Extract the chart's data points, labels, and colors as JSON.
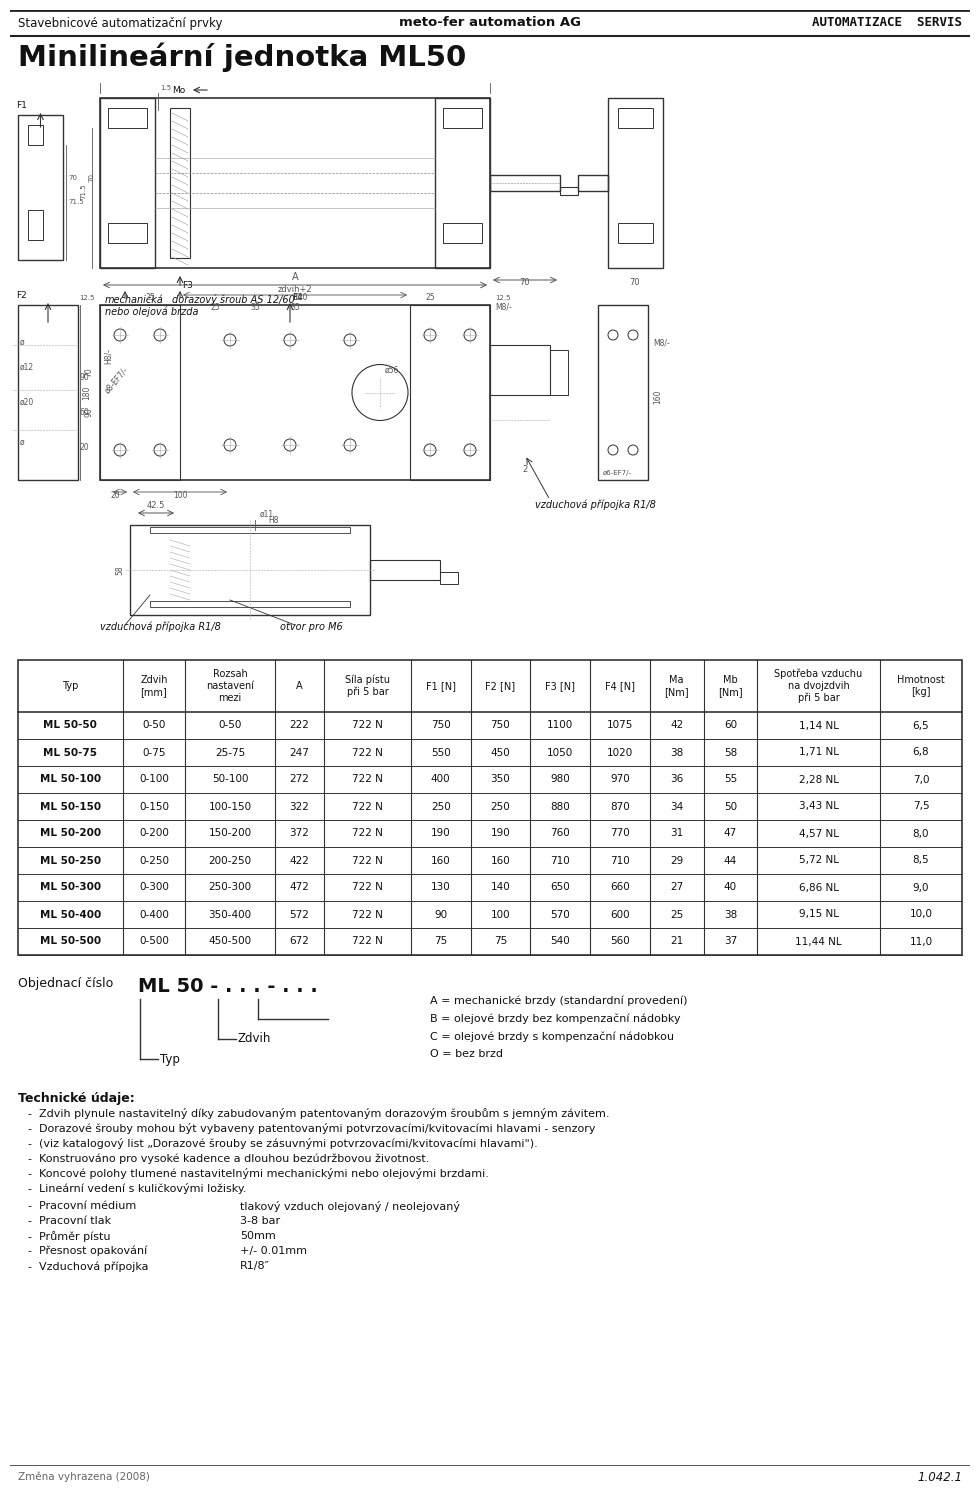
{
  "header_left": "Stavebnicové automatizační prvky",
  "header_center": "meto-fer automation AG",
  "header_right": "AUTOMATIZACE  SERVIS",
  "title": "Minilineární jednotka ML50",
  "table_headers": [
    "Typ",
    "Zdvih\n[mm]",
    "Rozsah\nnastavení\nmezi",
    "A",
    "Síla pístu\npři 5 bar",
    "F1 [N]",
    "F2 [N]",
    "F3 [N]",
    "F4 [N]",
    "Ma\n[Nm]",
    "Mb\n[Nm]",
    "Spotřeba vzduchu\nna dvojzdvih\npři 5 bar",
    "Hmotnost\n[kg]"
  ],
  "table_data": [
    [
      "ML 50-50",
      "0-50",
      "0-50",
      "222",
      "722 N",
      "750",
      "750",
      "1100",
      "1075",
      "42",
      "60",
      "1,14 NL",
      "6,5"
    ],
    [
      "ML 50-75",
      "0-75",
      "25-75",
      "247",
      "722 N",
      "550",
      "450",
      "1050",
      "1020",
      "38",
      "58",
      "1,71 NL",
      "6,8"
    ],
    [
      "ML 50-100",
      "0-100",
      "50-100",
      "272",
      "722 N",
      "400",
      "350",
      "980",
      "970",
      "36",
      "55",
      "2,28 NL",
      "7,0"
    ],
    [
      "ML 50-150",
      "0-150",
      "100-150",
      "322",
      "722 N",
      "250",
      "250",
      "880",
      "870",
      "34",
      "50",
      "3,43 NL",
      "7,5"
    ],
    [
      "ML 50-200",
      "0-200",
      "150-200",
      "372",
      "722 N",
      "190",
      "190",
      "760",
      "770",
      "31",
      "47",
      "4,57 NL",
      "8,0"
    ],
    [
      "ML 50-250",
      "0-250",
      "200-250",
      "422",
      "722 N",
      "160",
      "160",
      "710",
      "710",
      "29",
      "44",
      "5,72 NL",
      "8,5"
    ],
    [
      "ML 50-300",
      "0-300",
      "250-300",
      "472",
      "722 N",
      "130",
      "140",
      "650",
      "660",
      "27",
      "40",
      "6,86 NL",
      "9,0"
    ],
    [
      "ML 50-400",
      "0-400",
      "350-400",
      "572",
      "722 N",
      "90",
      "100",
      "570",
      "600",
      "25",
      "38",
      "9,15 NL",
      "10,0"
    ],
    [
      "ML 50-500",
      "0-500",
      "450-500",
      "672",
      "722 N",
      "75",
      "75",
      "540",
      "560",
      "21",
      "37",
      "11,44 NL",
      "11,0"
    ]
  ],
  "order_label": "Objednací číslo",
  "order_code": "ML 50 - . . . - . . .",
  "legend_lines": [
    "A = mechanické brzdy (standardní provedení)",
    "B = olejové brzdy bez kompenzační nádobky",
    "C = olejové brzdy s kompenzační nádobkou",
    "O = bez brzd"
  ],
  "zdvih_label": "Zdvih",
  "typ_label": "Typ",
  "tech_title": "Technické údaje:",
  "tech_lines": [
    "Zdvih plynule nastavitelný díky zabudovaným patentovaným dorazovým šroubům s jemným závitem.",
    "Dorazové šrouby mohou být vybaveny patentovanými potvrzovacími/kvitovacími hlavami - senzory",
    "(viz katalogový list „Dorazové šrouby se zásuvnými potvrzovacími/kvitovacími hlavami\").",
    "Konstruováno pro vysoké kadence a dlouhou bezúdržbovou životnost.",
    "Koncové polohy tlumené nastavitelnými mechanickými nebo olejovými brzdami.",
    "Lineární vedení s kuličkovými ložisky."
  ],
  "specs": [
    [
      "Pracovní médium",
      "tlakový vzduch olejovaný / neolejovaný"
    ],
    [
      "Pracovní tlak",
      "3-8 bar"
    ],
    [
      "Průměr pístu",
      "50mm"
    ],
    [
      "Přesnost opakování",
      "+/- 0.01mm"
    ],
    [
      "Vzduchová přípojka",
      "R1/8″"
    ]
  ],
  "footer_left": "Změna vyhrazena (2008)",
  "footer_right": "1.042.1",
  "bg_color": "#ffffff",
  "text_color": "#111111",
  "draw_color": "#444444",
  "dim_color": "#555555"
}
